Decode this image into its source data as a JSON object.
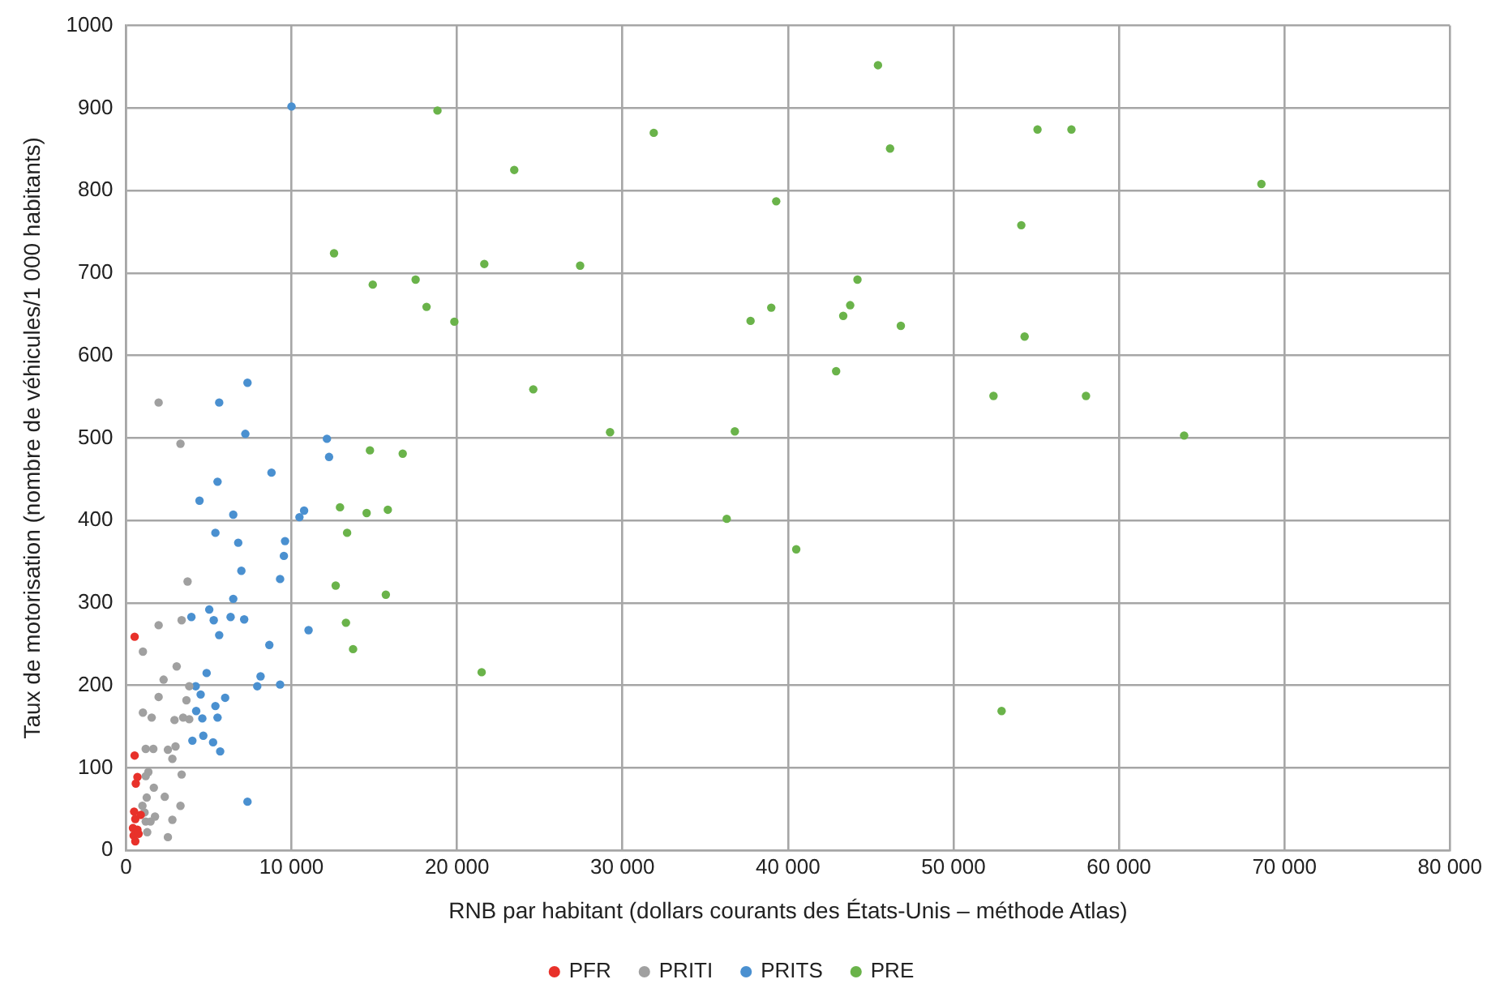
{
  "chart_data": {
    "type": "scatter",
    "xlabel": "RNB par habitant (dollars courants des États-Unis – méthode Atlas)",
    "ylabel": "Taux de motorisation (nombre de véhicules/1 000 habitants)",
    "xlim": [
      0,
      80000
    ],
    "xticks": [
      0,
      {
        "value": 10000,
        "label": "10 000"
      },
      {
        "value": 20000,
        "label": "20 000"
      },
      {
        "value": 30000,
        "label": "30 000"
      },
      {
        "value": 40000,
        "label": "40 000"
      },
      {
        "value": 50000,
        "label": "50 000"
      },
      {
        "value": 60000,
        "label": "60 000"
      },
      {
        "value": 70000,
        "label": "70 000"
      },
      {
        "value": 80000,
        "label": "80 000"
      }
    ],
    "ylim": [
      0,
      1000
    ],
    "yticks": [
      0,
      100,
      200,
      300,
      400,
      500,
      600,
      700,
      800,
      900,
      1000
    ],
    "grid": true,
    "legend": "bottom",
    "marker": "circle",
    "series": [
      {
        "name": "PFR",
        "color": "#e8312a",
        "x": [
          520,
          520,
          690,
          590,
          490,
          890,
          560,
          420,
          690,
          460,
          560,
          760
        ],
        "values": [
          259,
          115,
          89,
          81,
          47,
          43,
          38,
          27,
          25,
          18,
          11,
          20
        ]
      },
      {
        "name": "PRITI",
        "color": "#a0a0a0",
        "x": [
          1970,
          3290,
          3720,
          1970,
          3360,
          1020,
          3060,
          2270,
          3820,
          3650,
          1970,
          1020,
          1550,
          2930,
          3450,
          3820,
          1190,
          1650,
          2530,
          2990,
          2800,
          3360,
          1350,
          1190,
          1680,
          2340,
          1250,
          990,
          3290,
          1120,
          1750,
          1190,
          1480,
          2800,
          1280,
          2530
        ],
        "values": [
          543,
          493,
          326,
          273,
          279,
          241,
          223,
          207,
          199,
          182,
          186,
          167,
          161,
          158,
          161,
          159,
          123,
          123,
          122,
          126,
          111,
          92,
          95,
          90,
          76,
          65,
          64,
          54,
          54,
          46,
          41,
          35,
          35,
          37,
          22,
          16
        ]
      },
      {
        "name": "PRITS",
        "color": "#4a90d0",
        "x": [
          10000,
          12140,
          12270,
          10480,
          10760,
          11030,
          7340,
          5630,
          7210,
          8790,
          5530,
          4440,
          6480,
          5400,
          6780,
          9610,
          9540,
          6970,
          9310,
          6480,
          3950,
          5030,
          5300,
          6320,
          7140,
          5630,
          8660,
          4870,
          8130,
          7930,
          9310,
          4210,
          4510,
          5990,
          5400,
          4240,
          4610,
          5530,
          4670,
          4010,
          5260,
          5690,
          7340
        ],
        "values": [
          902,
          499,
          477,
          404,
          412,
          267,
          567,
          543,
          505,
          458,
          447,
          424,
          407,
          385,
          373,
          375,
          357,
          339,
          329,
          305,
          283,
          292,
          279,
          283,
          280,
          261,
          249,
          215,
          211,
          199,
          201,
          199,
          189,
          185,
          175,
          169,
          160,
          161,
          139,
          133,
          131,
          120,
          59
        ]
      },
      {
        "name": "PRE",
        "color": "#6ab34a",
        "x": [
          45440,
          18820,
          31890,
          46170,
          23460,
          55080,
          57130,
          68610,
          39290,
          54100,
          44200,
          43760,
          43340,
          46820,
          37740,
          38990,
          54300,
          42910,
          52420,
          58010,
          36790,
          63940,
          36300,
          40500,
          52910,
          12570,
          21650,
          27440,
          14910,
          17500,
          18160,
          19840,
          24610,
          29250,
          14740,
          16720,
          12930,
          14540,
          15820,
          13360,
          12670,
          15700,
          13290,
          13720,
          21490
        ],
        "values": [
          952,
          897,
          870,
          851,
          825,
          874,
          874,
          808,
          787,
          758,
          692,
          661,
          648,
          636,
          642,
          658,
          623,
          581,
          551,
          551,
          508,
          503,
          402,
          365,
          169,
          724,
          711,
          709,
          686,
          692,
          659,
          641,
          559,
          507,
          485,
          481,
          416,
          409,
          413,
          385,
          321,
          310,
          276,
          244,
          216
        ]
      }
    ]
  }
}
